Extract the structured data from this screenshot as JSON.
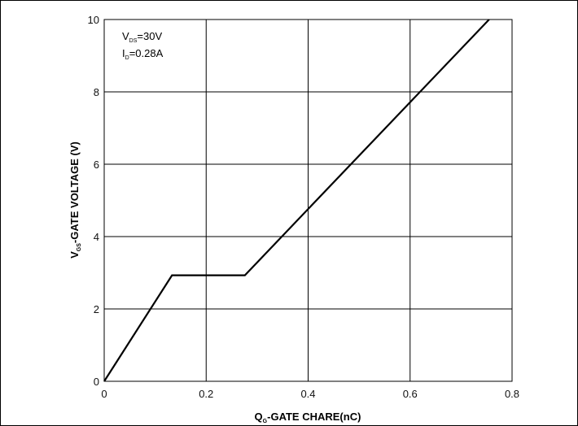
{
  "chart_data": {
    "type": "line",
    "xlabel_main": "Q",
    "xlabel_sub": "G",
    "xlabel_rest": "-GATE CHARE(nC)",
    "ylabel_main": "V",
    "ylabel_sub": "GS",
    "ylabel_rest": "-GATE VOLTAGE (V)",
    "xlim": [
      0,
      0.8
    ],
    "ylim": [
      0,
      10
    ],
    "x_ticks": [
      0,
      0.2,
      0.4,
      0.6,
      0.8
    ],
    "x_tick_labels": [
      "0",
      "0.2",
      "0.4",
      "0.6",
      "0.8"
    ],
    "y_ticks": [
      0,
      2,
      4,
      6,
      8,
      10
    ],
    "y_tick_labels": [
      "0",
      "2",
      "4",
      "6",
      "8",
      "10"
    ],
    "grid": true,
    "series": [
      {
        "x": [
          0,
          0.133,
          0.276,
          0.755
        ],
        "y": [
          0,
          2.93,
          2.93,
          10
        ]
      }
    ],
    "annotations": [
      {
        "main": "V",
        "sub": "DS",
        "rest": "=30V"
      },
      {
        "main": "I",
        "sub": "D",
        "rest": "=0.28A"
      }
    ]
  }
}
